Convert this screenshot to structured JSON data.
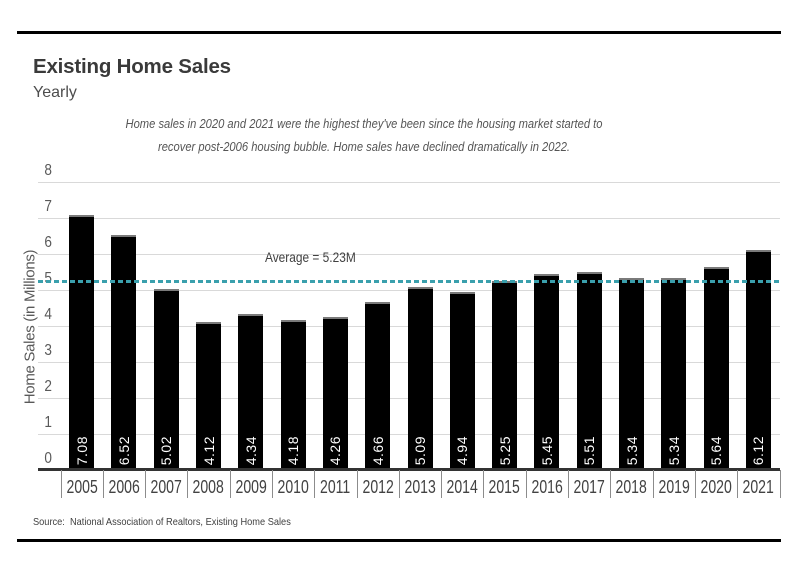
{
  "page": {
    "title": "Existing Home Sales",
    "subtitle": "Yearly",
    "annotation_line1": "Home sales in 2020 and 2021 were the highest they've been since the housing market started to",
    "annotation_line2": "recover post-2006 housing bubble. Home sales have declined dramatically in 2022.",
    "source": "Source:  National Association of Realtors, Existing Home Sales"
  },
  "chart_data": {
    "type": "bar",
    "title": "Existing Home Sales",
    "subtitle": "Yearly",
    "categories": [
      "2005",
      "2006",
      "2007",
      "2008",
      "2009",
      "2010",
      "2011",
      "2012",
      "2013",
      "2014",
      "2015",
      "2016",
      "2017",
      "2018",
      "2019",
      "2020",
      "2021"
    ],
    "values": [
      7.08,
      6.52,
      5.02,
      4.12,
      4.34,
      4.18,
      4.26,
      4.66,
      5.09,
      4.94,
      5.25,
      5.45,
      5.51,
      5.34,
      5.34,
      5.64,
      6.12
    ],
    "xlabel": "",
    "ylabel": "Home Sales (in Millions)",
    "ylim": [
      0,
      8
    ],
    "yticks": [
      0,
      1,
      2,
      3,
      4,
      5,
      6,
      7,
      8
    ],
    "grid": "horizontal",
    "legend": "none",
    "bar_color": "#000000",
    "bar_label_color": "#ffffff",
    "average": {
      "value": 5.23,
      "label": "Average = 5.23M",
      "line_color": "#3aa0ad",
      "style": "dashed"
    }
  }
}
